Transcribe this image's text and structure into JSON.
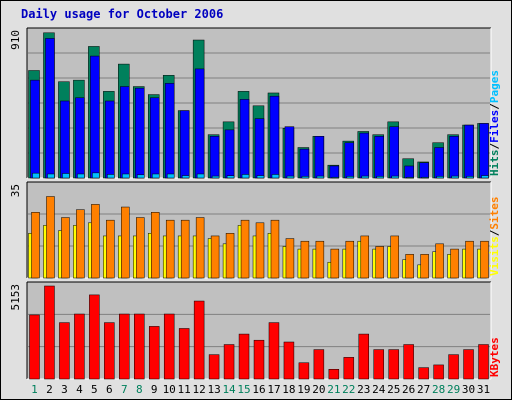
{
  "title": "Daily usage for October 2006",
  "colors": {
    "hits": "#00805c",
    "files": "#0000ff",
    "pages": "#00c0ff",
    "visits": "#ffff00",
    "sites": "#ff8000",
    "kbytes": "#ff0000",
    "weekday_label": "#000000",
    "weekend_label": "#00805c",
    "panel_bg": "#c0c0c0",
    "frame_bg": "#e0e0e0",
    "gridline": "#808080"
  },
  "chart_data": [
    {
      "type": "bar",
      "panel": "hits-files-pages",
      "ymax_label": "910",
      "ylim": [
        0,
        910
      ],
      "side_legend": [
        {
          "text": "Hits",
          "color_key": "hits"
        },
        {
          "text": "/",
          "color_key": "none"
        },
        {
          "text": "Files",
          "color_key": "files"
        },
        {
          "text": "/",
          "color_key": "none"
        },
        {
          "text": "Pages",
          "color_key": "pages"
        }
      ],
      "series": [
        {
          "name": "Hits",
          "color_key": "hits",
          "values": [
            670,
            905,
            600,
            610,
            820,
            540,
            710,
            570,
            520,
            640,
            420,
            860,
            270,
            350,
            540,
            450,
            530,
            310,
            190,
            260,
            80,
            230,
            290,
            270,
            350,
            120,
            100,
            220,
            270,
            330,
            340
          ]
        },
        {
          "name": "Files",
          "color_key": "files",
          "values": [
            610,
            870,
            480,
            500,
            760,
            480,
            570,
            560,
            500,
            590,
            420,
            680,
            260,
            300,
            490,
            370,
            510,
            320,
            180,
            260,
            75,
            220,
            280,
            260,
            320,
            75,
            95,
            190,
            260,
            330,
            340
          ]
        },
        {
          "name": "Pages",
          "color_key": "pages",
          "values": [
            30,
            25,
            28,
            25,
            32,
            22,
            25,
            20,
            25,
            25,
            15,
            25,
            12,
            14,
            22,
            15,
            22,
            12,
            10,
            12,
            5,
            10,
            12,
            10,
            12,
            5,
            5,
            10,
            12,
            10,
            15
          ]
        }
      ]
    },
    {
      "type": "bar",
      "panel": "visits-sites",
      "ymax_label": "35",
      "ylim": [
        0,
        35
      ],
      "side_legend": [
        {
          "text": "Visits",
          "color_key": "visits"
        },
        {
          "text": "/",
          "color_key": "none"
        },
        {
          "text": "Sites",
          "color_key": "sites"
        }
      ],
      "series": [
        {
          "name": "Sites",
          "color_key": "sites",
          "values": [
            25,
            31,
            23,
            26,
            28,
            22,
            27,
            23,
            25,
            22,
            22,
            23,
            16,
            17,
            22,
            21,
            22,
            15,
            14,
            14,
            11,
            14,
            16,
            12,
            16,
            9,
            9,
            13,
            11,
            14,
            14
          ]
        },
        {
          "name": "Visits",
          "color_key": "visits",
          "values": [
            17,
            20,
            18,
            20,
            21,
            16,
            16,
            16,
            17,
            16,
            16,
            16,
            15,
            13,
            20,
            16,
            17,
            12,
            11,
            11,
            6,
            11,
            14,
            11,
            12,
            7,
            5,
            10,
            9,
            11,
            11
          ]
        }
      ]
    },
    {
      "type": "bar",
      "panel": "kbytes",
      "ymax_label": "5153",
      "ylim": [
        0,
        5153
      ],
      "side_legend": [
        {
          "text": "KBytes",
          "color_key": "kbytes"
        }
      ],
      "series": [
        {
          "name": "KBytes",
          "color_key": "kbytes",
          "values": [
            3550,
            5153,
            3125,
            3600,
            4660,
            3125,
            3600,
            3600,
            2915,
            3600,
            2800,
            4320,
            1350,
            1910,
            2490,
            2150,
            3125,
            2050,
            900,
            1630,
            540,
            1200,
            2490,
            1630,
            1630,
            1910,
            630,
            780,
            1350,
            1630,
            1910
          ]
        }
      ]
    }
  ],
  "days": [
    "1",
    "2",
    "3",
    "4",
    "5",
    "6",
    "7",
    "8",
    "9",
    "10",
    "11",
    "12",
    "13",
    "14",
    "15",
    "16",
    "17",
    "18",
    "19",
    "20",
    "21",
    "22",
    "23",
    "24",
    "25",
    "26",
    "27",
    "28",
    "29",
    "30",
    "31"
  ],
  "weekend_days": [
    1,
    7,
    8,
    14,
    15,
    21,
    22,
    28,
    29
  ]
}
